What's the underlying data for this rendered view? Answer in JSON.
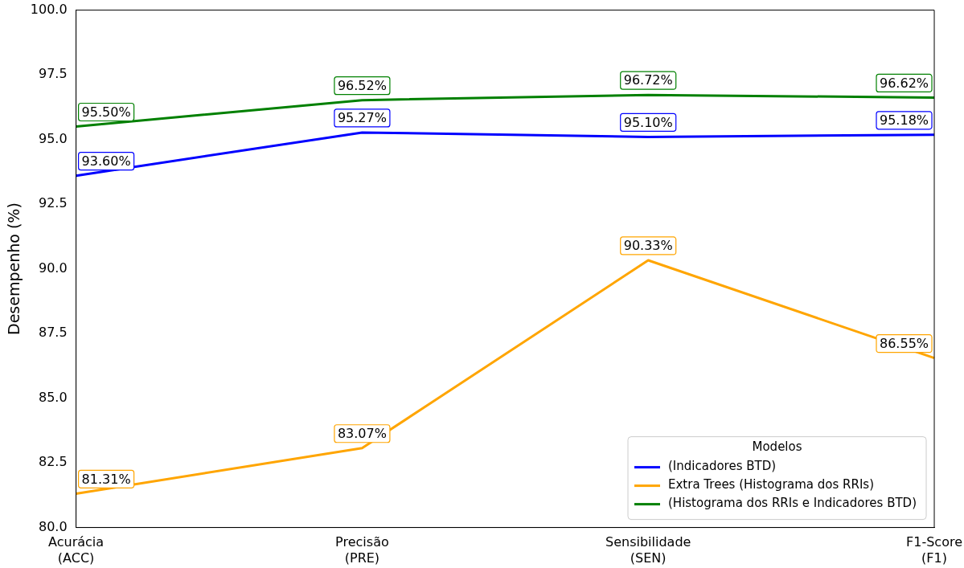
{
  "chart_data": {
    "type": "line",
    "ylabel": "Desempenho (%)",
    "legend_title": "Modelos",
    "legend": "bottom right",
    "grid": false,
    "marker": "none",
    "line_style": "solid",
    "categories": [
      "Acurácia\n(ACC)",
      "Precisão\n(PRE)",
      "Sensibilidade\n(SEN)",
      "F1-Score\n(F1)"
    ],
    "ylim": [
      80,
      100
    ],
    "yticks": [
      {
        "value": 80,
        "label": "80.0"
      },
      {
        "value": 82.5,
        "label": "82.5"
      },
      {
        "value": 85,
        "label": "85.0"
      },
      {
        "value": 87.5,
        "label": "87.5"
      },
      {
        "value": 90,
        "label": "90.0"
      },
      {
        "value": 92.5,
        "label": "92.5"
      },
      {
        "value": 95,
        "label": "95.0"
      },
      {
        "value": 97.5,
        "label": "97.5"
      },
      {
        "value": 100,
        "label": "100.0"
      }
    ],
    "series": [
      {
        "name": "(Indicadores BTD)",
        "color": "#0000ff",
        "values": [
          93.6,
          95.27,
          95.1,
          95.18
        ],
        "value_labels": [
          "93.60%",
          "95.27%",
          "95.10%",
          "95.18%"
        ]
      },
      {
        "name": "Extra Trees (Histograma dos RRIs)",
        "color": "#ffa500",
        "values": [
          81.31,
          83.07,
          90.33,
          86.55
        ],
        "value_labels": [
          "81.31%",
          "83.07%",
          "90.33%",
          "86.55%"
        ]
      },
      {
        "name": "(Histograma dos RRIs e Indicadores BTD)",
        "color": "#008000",
        "values": [
          95.5,
          96.52,
          96.72,
          96.62
        ],
        "value_labels": [
          "95.50%",
          "96.52%",
          "96.72%",
          "96.62%"
        ]
      }
    ]
  }
}
